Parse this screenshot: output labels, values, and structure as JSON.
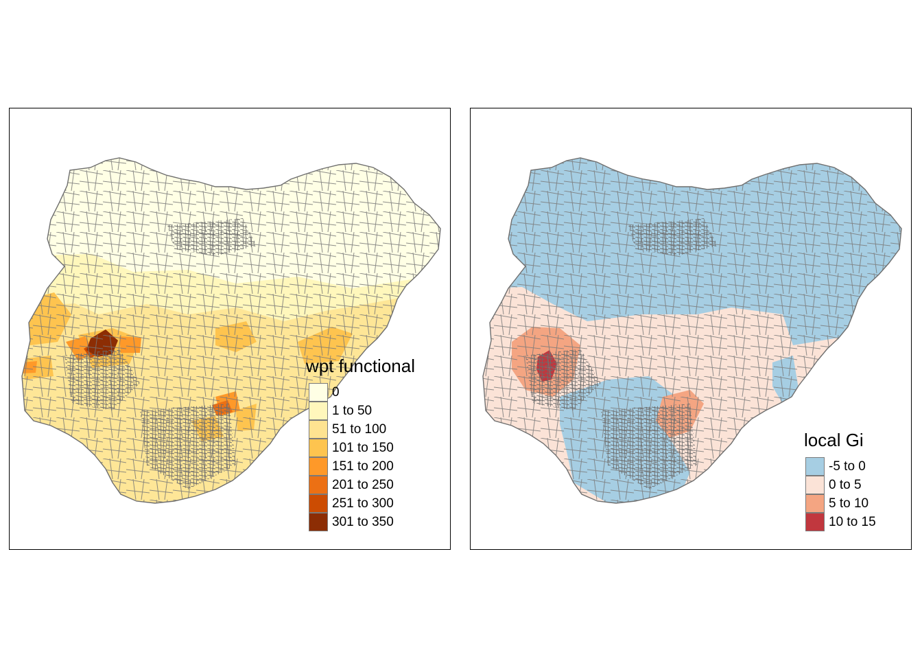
{
  "maps": [
    {
      "legend": {
        "title": "wpt functional",
        "classes": [
          {
            "label": "0",
            "color": "#ffffe5"
          },
          {
            "label": "1 to 50",
            "color": "#fff7bc"
          },
          {
            "label": "51 to 100",
            "color": "#fee391"
          },
          {
            "label": "101 to 150",
            "color": "#fec44f"
          },
          {
            "label": "151 to 200",
            "color": "#fe9929"
          },
          {
            "label": "201 to 250",
            "color": "#ec7014"
          },
          {
            "label": "251 to 300",
            "color": "#cc4c02"
          },
          {
            "label": "301 to 350",
            "color": "#8c2d04"
          }
        ]
      }
    },
    {
      "legend": {
        "title": "local Gi",
        "classes": [
          {
            "label": "-5 to 0",
            "color": "#a6cee3"
          },
          {
            "label": "0 to 5",
            "color": "#fbe3d7"
          },
          {
            "label": "5 to 10",
            "color": "#f4a582"
          },
          {
            "label": "10 to 15",
            "color": "#c1373e"
          }
        ]
      }
    }
  ]
}
